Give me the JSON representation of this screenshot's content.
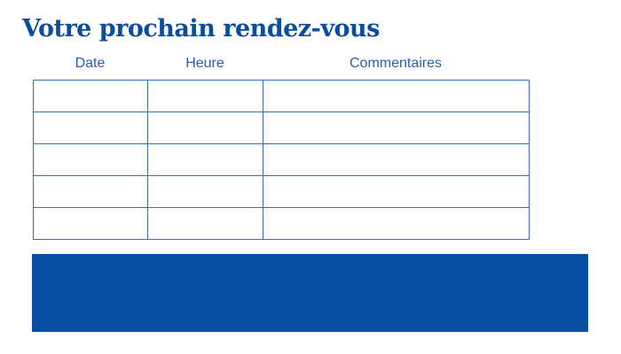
{
  "title": "Votre prochain rendez-vous",
  "columns": [
    "Date",
    "Heure",
    "Commentaires"
  ],
  "rows": [
    [
      "",
      "",
      ""
    ],
    [
      "",
      "",
      ""
    ],
    [
      "",
      "",
      ""
    ],
    [
      "",
      "",
      ""
    ],
    [
      "",
      "",
      ""
    ]
  ],
  "colors": {
    "primary": "#074fa2",
    "border": "#3a6db3"
  }
}
